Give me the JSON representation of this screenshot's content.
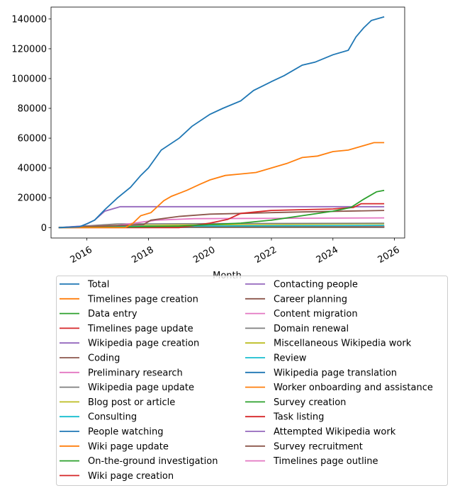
{
  "chart_data": {
    "type": "line",
    "title": "",
    "xlabel": "Month",
    "ylabel": "",
    "xlim": [
      "2014-11",
      "2026-05"
    ],
    "ylim": [
      -7000,
      148000
    ],
    "x_ticks": [
      "2016",
      "2018",
      "2020",
      "2022",
      "2024",
      "2026"
    ],
    "y_ticks": [
      0,
      20000,
      40000,
      60000,
      80000,
      100000,
      120000,
      140000
    ],
    "grid": false,
    "legend_placement": "below",
    "series": [
      {
        "name": "Total",
        "color": "#1f77b4",
        "points": [
          [
            "2015-02",
            0
          ],
          [
            "2015-10",
            500
          ],
          [
            "2016-01",
            2500
          ],
          [
            "2016-04",
            5000
          ],
          [
            "2016-08",
            12000
          ],
          [
            "2017-01",
            20000
          ],
          [
            "2017-06",
            27000
          ],
          [
            "2017-10",
            35000
          ],
          [
            "2018-01",
            40000
          ],
          [
            "2018-06",
            52000
          ],
          [
            "2019-01",
            60000
          ],
          [
            "2019-06",
            68000
          ],
          [
            "2020-01",
            76000
          ],
          [
            "2020-06",
            80000
          ],
          [
            "2021-01",
            85000
          ],
          [
            "2021-06",
            92000
          ],
          [
            "2022-01",
            98000
          ],
          [
            "2022-06",
            102000
          ],
          [
            "2023-01",
            109000
          ],
          [
            "2023-06",
            111000
          ],
          [
            "2024-01",
            116000
          ],
          [
            "2024-07",
            119000
          ],
          [
            "2024-10",
            128000
          ],
          [
            "2025-01",
            134000
          ],
          [
            "2025-04",
            139000
          ],
          [
            "2025-09",
            141500
          ]
        ]
      },
      {
        "name": "Timelines page creation",
        "color": "#ff7f0e",
        "points": [
          [
            "2015-02",
            0
          ],
          [
            "2017-04",
            0
          ],
          [
            "2017-07",
            3000
          ],
          [
            "2017-10",
            8000
          ],
          [
            "2018-02",
            10000
          ],
          [
            "2018-07",
            18000
          ],
          [
            "2018-10",
            21000
          ],
          [
            "2019-04",
            25000
          ],
          [
            "2019-09",
            29000
          ],
          [
            "2020-01",
            32000
          ],
          [
            "2020-07",
            35000
          ],
          [
            "2021-01",
            36000
          ],
          [
            "2021-07",
            37000
          ],
          [
            "2022-01",
            40000
          ],
          [
            "2022-07",
            43000
          ],
          [
            "2023-01",
            47000
          ],
          [
            "2023-07",
            48000
          ],
          [
            "2024-01",
            51000
          ],
          [
            "2024-07",
            52000
          ],
          [
            "2025-01",
            55000
          ],
          [
            "2025-05",
            57000
          ],
          [
            "2025-09",
            57000
          ]
        ]
      },
      {
        "name": "Data entry",
        "color": "#2ca02c",
        "points": [
          [
            "2015-02",
            0
          ],
          [
            "2017-01",
            300
          ],
          [
            "2019-01",
            1000
          ],
          [
            "2021-01",
            3000
          ],
          [
            "2022-01",
            5000
          ],
          [
            "2023-01",
            8000
          ],
          [
            "2024-01",
            11000
          ],
          [
            "2024-08",
            13500
          ],
          [
            "2025-01",
            19000
          ],
          [
            "2025-06",
            24000
          ],
          [
            "2025-09",
            25000
          ]
        ]
      },
      {
        "name": "Timelines page update",
        "color": "#d62728",
        "points": [
          [
            "2015-02",
            0
          ],
          [
            "2019-01",
            0
          ],
          [
            "2020-01",
            3000
          ],
          [
            "2020-08",
            5500
          ],
          [
            "2021-01",
            9500
          ],
          [
            "2022-01",
            11500
          ],
          [
            "2023-01",
            12000
          ],
          [
            "2024-01",
            12500
          ],
          [
            "2024-09",
            13500
          ],
          [
            "2024-12",
            16000
          ],
          [
            "2025-09",
            16000
          ]
        ]
      },
      {
        "name": "Wikipedia page creation",
        "color": "#9467bd",
        "points": [
          [
            "2015-02",
            0
          ],
          [
            "2015-11",
            1000
          ],
          [
            "2016-04",
            5000
          ],
          [
            "2016-08",
            11000
          ],
          [
            "2017-01",
            13500
          ],
          [
            "2017-02",
            14000
          ],
          [
            "2025-09",
            14000
          ]
        ]
      },
      {
        "name": "Coding",
        "color": "#8c564b",
        "points": [
          [
            "2015-02",
            0
          ],
          [
            "2017-03",
            1500
          ],
          [
            "2017-11",
            2000
          ],
          [
            "2018-02",
            5000
          ],
          [
            "2019-01",
            7500
          ],
          [
            "2020-01",
            9000
          ],
          [
            "2021-01",
            9500
          ],
          [
            "2022-01",
            10000
          ],
          [
            "2023-01",
            10500
          ],
          [
            "2025-09",
            11500
          ]
        ]
      },
      {
        "name": "Preliminary research",
        "color": "#e377c2",
        "points": [
          [
            "2015-02",
            0
          ],
          [
            "2017-01",
            1500
          ],
          [
            "2018-04",
            5000
          ],
          [
            "2019-07",
            6000
          ],
          [
            "2025-09",
            6500
          ]
        ]
      },
      {
        "name": "Wikipedia page update",
        "color": "#7f7f7f",
        "points": [
          [
            "2015-02",
            0
          ],
          [
            "2017-01",
            2500
          ],
          [
            "2025-09",
            3000
          ]
        ]
      },
      {
        "name": "Blog post or article",
        "color": "#bcbd22",
        "points": [
          [
            "2015-02",
            0
          ],
          [
            "2016-06",
            1500
          ],
          [
            "2025-09",
            2500
          ]
        ]
      },
      {
        "name": "Consulting",
        "color": "#17becf",
        "points": [
          [
            "2015-02",
            0
          ],
          [
            "2018-01",
            1000
          ],
          [
            "2025-09",
            1500
          ]
        ]
      },
      {
        "name": "People watching",
        "color": "#1f77b4",
        "points": [
          [
            "2015-02",
            0
          ],
          [
            "2016-01",
            800
          ],
          [
            "2025-09",
            1200
          ]
        ]
      },
      {
        "name": "Wiki page update",
        "color": "#ff7f0e",
        "points": [
          [
            "2015-02",
            0
          ],
          [
            "2017-01",
            800
          ],
          [
            "2025-09",
            1000
          ]
        ]
      },
      {
        "name": "On-the-ground investigation",
        "color": "#2ca02c",
        "points": [
          [
            "2015-02",
            0
          ],
          [
            "2018-01",
            600
          ],
          [
            "2025-09",
            900
          ]
        ]
      },
      {
        "name": "Wiki page creation",
        "color": "#d62728",
        "points": [
          [
            "2015-02",
            0
          ],
          [
            "2017-01",
            500
          ],
          [
            "2025-09",
            800
          ]
        ]
      },
      {
        "name": "Contacting people",
        "color": "#9467bd",
        "points": [
          [
            "2015-02",
            0
          ],
          [
            "2019-01",
            400
          ],
          [
            "2025-09",
            700
          ]
        ]
      },
      {
        "name": "Career planning",
        "color": "#8c564b",
        "points": [
          [
            "2015-02",
            0
          ],
          [
            "2020-01",
            300
          ],
          [
            "2025-09",
            600
          ]
        ]
      },
      {
        "name": "Content migration",
        "color": "#e377c2",
        "points": [
          [
            "2015-02",
            0
          ],
          [
            "2019-01",
            300
          ],
          [
            "2025-09",
            500
          ]
        ]
      },
      {
        "name": "Domain renewal",
        "color": "#7f7f7f",
        "points": [
          [
            "2015-02",
            0
          ],
          [
            "2025-09",
            400
          ]
        ]
      },
      {
        "name": "Miscellaneous Wikipedia work",
        "color": "#bcbd22",
        "points": [
          [
            "2015-02",
            0
          ],
          [
            "2017-01",
            300
          ],
          [
            "2025-09",
            400
          ]
        ]
      },
      {
        "name": "Review",
        "color": "#17becf",
        "points": [
          [
            "2015-02",
            0
          ],
          [
            "2021-01",
            200
          ],
          [
            "2025-09",
            300
          ]
        ]
      },
      {
        "name": "Wikipedia page translation",
        "color": "#1f77b4",
        "points": [
          [
            "2015-02",
            0
          ],
          [
            "2018-01",
            200
          ],
          [
            "2025-09",
            300
          ]
        ]
      },
      {
        "name": "Worker onboarding and assistance",
        "color": "#ff7f0e",
        "points": [
          [
            "2015-02",
            0
          ],
          [
            "2020-01",
            200
          ],
          [
            "2025-09",
            250
          ]
        ]
      },
      {
        "name": "Survey creation",
        "color": "#2ca02c",
        "points": [
          [
            "2015-02",
            0
          ],
          [
            "2019-01",
            150
          ],
          [
            "2025-09",
            200
          ]
        ]
      },
      {
        "name": "Task listing",
        "color": "#d62728",
        "points": [
          [
            "2015-02",
            0
          ],
          [
            "2018-01",
            100
          ],
          [
            "2025-09",
            150
          ]
        ]
      },
      {
        "name": "Attempted Wikipedia work",
        "color": "#9467bd",
        "points": [
          [
            "2015-02",
            0
          ],
          [
            "2025-09",
            100
          ]
        ]
      },
      {
        "name": "Survey recruitment",
        "color": "#8c564b",
        "points": [
          [
            "2015-02",
            0
          ],
          [
            "2025-09",
            80
          ]
        ]
      },
      {
        "name": "Timelines page outline",
        "color": "#e377c2",
        "points": [
          [
            "2015-02",
            0
          ],
          [
            "2025-09",
            50
          ]
        ]
      }
    ]
  }
}
